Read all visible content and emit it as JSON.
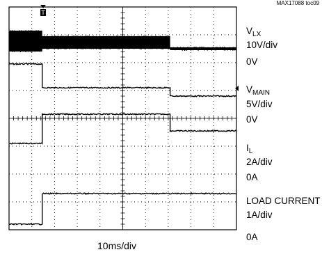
{
  "figure_id": "MAX17088 toc09",
  "chart_data": {
    "type": "line",
    "title": "",
    "xlabel": "10ms/div",
    "ylabel": "",
    "grid": true,
    "divisions": {
      "x": 10,
      "y": 8
    },
    "trigger_marker": "T",
    "series": [
      {
        "name": "V",
        "name_sub": "LX",
        "scale": "10V/div",
        "zero_label": "0V",
        "description": "switching node, dense switching band",
        "segments": [
          {
            "t_ms": [
              0,
              17.5
            ],
            "low_div": 6.4,
            "high_div": 7.15
          },
          {
            "t_ms": [
              17.5,
              85
            ],
            "low_div": 6.5,
            "high_div": 6.95
          },
          {
            "t_ms": [
              85,
              120
            ],
            "low_div": 6.45,
            "high_div": 6.55
          }
        ]
      },
      {
        "name": "V",
        "name_sub": "MAIN",
        "scale": "5V/div",
        "zero_label": "0V",
        "points_ms_div": [
          [
            0,
            5.95
          ],
          [
            17.5,
            5.95
          ],
          [
            17.5,
            5.1
          ],
          [
            85,
            5.1
          ],
          [
            85,
            4.8
          ],
          [
            120,
            4.8
          ]
        ]
      },
      {
        "name": "I",
        "name_sub": "L",
        "scale": "2A/div",
        "zero_label": "0A",
        "points_ms_div": [
          [
            0,
            3.1
          ],
          [
            17.5,
            3.1
          ],
          [
            17.5,
            4.15
          ],
          [
            85,
            4.15
          ],
          [
            85,
            3.55
          ],
          [
            120,
            3.55
          ]
        ]
      },
      {
        "name": "LOAD CURRENT",
        "name_sub": "",
        "scale": "1A/div",
        "zero_label": "0A",
        "points_ms_div": [
          [
            0,
            0.2
          ],
          [
            17.5,
            0.2
          ],
          [
            17.5,
            1.3
          ],
          [
            120,
            1.3
          ]
        ]
      }
    ]
  }
}
